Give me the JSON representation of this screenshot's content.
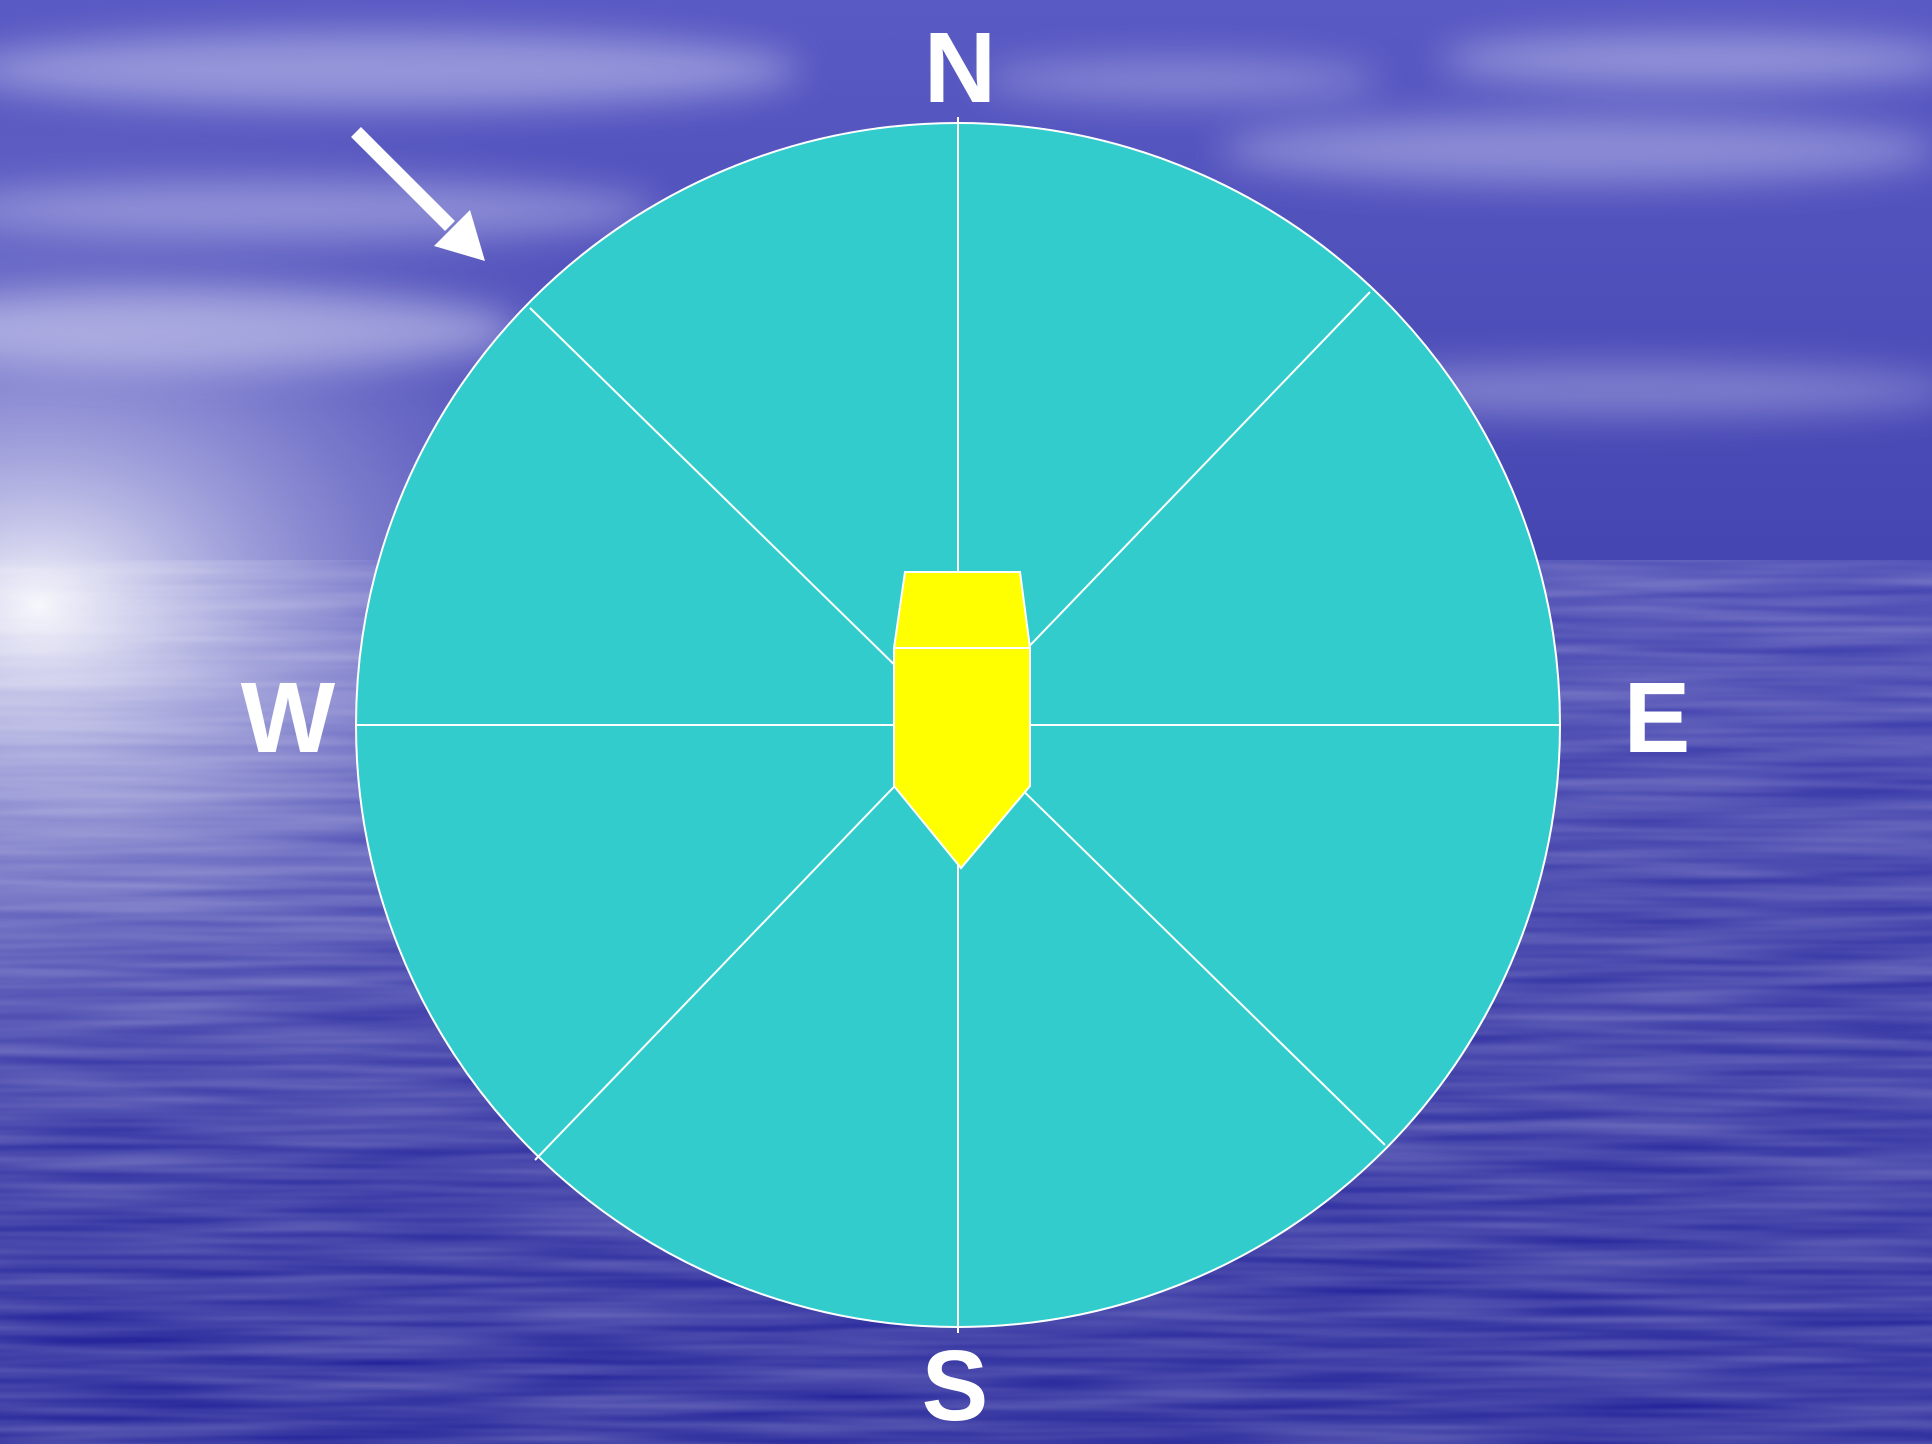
{
  "compass": {
    "north": "N",
    "south": "S",
    "east": "E",
    "west": "W"
  },
  "colors": {
    "background_deep": "#2a2a9e",
    "background_mid": "#4b4bb8",
    "background_light": "#8a8ad8",
    "circle_fill": "#33cccc",
    "divider_line": "#ffffff",
    "boat_fill": "#ffff00",
    "arrow": "#ffffff",
    "label_text": "#ffffff"
  },
  "icons": {
    "wind_arrow": "arrow-down-right-icon",
    "boat": "boat-icon"
  }
}
